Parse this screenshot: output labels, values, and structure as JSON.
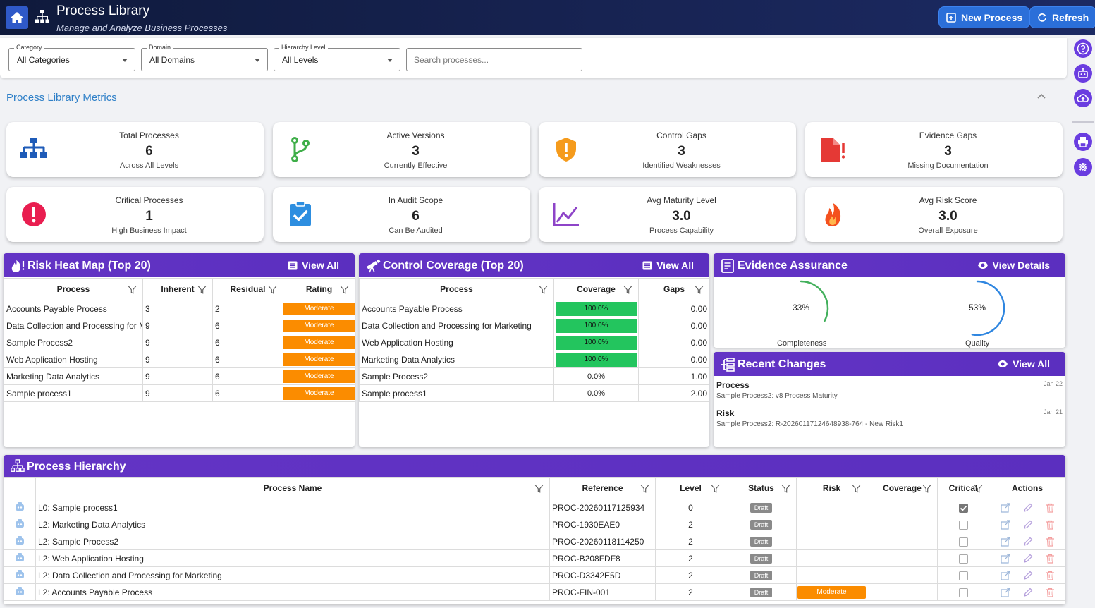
{
  "header": {
    "title": "Process Library",
    "subtitle": "Manage and Analyze Business Processes",
    "new_process_label": "New Process",
    "refresh_label": "Refresh"
  },
  "filters": {
    "category": {
      "label": "Category",
      "value": "All Categories"
    },
    "domain": {
      "label": "Domain",
      "value": "All Domains"
    },
    "level": {
      "label": "Hierarchy Level",
      "value": "All Levels"
    },
    "search_placeholder": "Search processes..."
  },
  "metrics": {
    "title": "Process Library Metrics",
    "cards": [
      {
        "label": "Total Processes",
        "value": "6",
        "sub": "Across All Levels",
        "icon": "hierarchy-icon",
        "color": "#1e5bb8"
      },
      {
        "label": "Active Versions",
        "value": "3",
        "sub": "Currently Effective",
        "icon": "branch-icon",
        "color": "#3fae49"
      },
      {
        "label": "Control Gaps",
        "value": "3",
        "sub": "Identified Weaknesses",
        "icon": "shield-alert-icon",
        "color": "#f59b1c"
      },
      {
        "label": "Evidence Gaps",
        "value": "3",
        "sub": "Missing Documentation",
        "icon": "file-alert-icon",
        "color": "#e53935"
      },
      {
        "label": "Critical Processes",
        "value": "1",
        "sub": "High Business Impact",
        "icon": "alert-circle-icon",
        "color": "#e91e50"
      },
      {
        "label": "In Audit Scope",
        "value": "6",
        "sub": "Can Be Audited",
        "icon": "clipboard-check-icon",
        "color": "#2d8ee0"
      },
      {
        "label": "Avg Maturity Level",
        "value": "3.0",
        "sub": "Process Capability",
        "icon": "chart-line-icon",
        "color": "#8e44c8"
      },
      {
        "label": "Avg Risk Score",
        "value": "3.0",
        "sub": "Overall Exposure",
        "icon": "fire-icon",
        "color": "#f4511e"
      }
    ]
  },
  "risk_heatmap": {
    "title": "Risk Heat Map (Top 20)",
    "view_all": "View All",
    "columns": [
      "Process",
      "Inherent",
      "Residual",
      "Rating"
    ],
    "rows": [
      [
        "Accounts Payable Process",
        "3",
        "2",
        "Moderate"
      ],
      [
        "Data Collection and Processing for Marketing",
        "9",
        "6",
        "Moderate"
      ],
      [
        "Sample Process2",
        "9",
        "6",
        "Moderate"
      ],
      [
        "Web Application Hosting",
        "9",
        "6",
        "Moderate"
      ],
      [
        "Marketing Data Analytics",
        "9",
        "6",
        "Moderate"
      ],
      [
        "Sample process1",
        "9",
        "6",
        "Moderate"
      ]
    ]
  },
  "control_coverage": {
    "title": "Control Coverage (Top 20)",
    "view_all": "View All",
    "columns": [
      "Process",
      "Coverage",
      "Gaps"
    ],
    "rows": [
      [
        "Accounts Payable Process",
        "100.0%",
        "0.00"
      ],
      [
        "Data Collection and Processing for Marketing",
        "100.0%",
        "0.00"
      ],
      [
        "Web Application Hosting",
        "100.0%",
        "0.00"
      ],
      [
        "Marketing Data Analytics",
        "100.0%",
        "0.00"
      ],
      [
        "Sample Process2",
        "0.0%",
        "1.00"
      ],
      [
        "Sample process1",
        "0.0%",
        "2.00"
      ]
    ]
  },
  "evidence": {
    "title": "Evidence Assurance",
    "view_details": "View Details",
    "completeness": {
      "label": "Completeness",
      "value": "33%",
      "fraction": 0.33,
      "color": "#43b05c"
    },
    "quality": {
      "label": "Quality",
      "value": "53%",
      "fraction": 0.53,
      "color": "#2f86e0"
    }
  },
  "recent_changes": {
    "title": "Recent Changes",
    "view_all": "View All",
    "items": [
      {
        "type": "Process",
        "desc": "Sample Process2: v8 Process Maturity",
        "date": "Jan 22"
      },
      {
        "type": "Risk",
        "desc": "Sample Process2: R-20260117124648938-764 - New Risk1",
        "date": "Jan 21"
      }
    ]
  },
  "hierarchy": {
    "title": "Process Hierarchy",
    "columns": [
      "Process Name",
      "Reference",
      "Level",
      "Status",
      "Risk",
      "Coverage",
      "Critical",
      "Actions"
    ],
    "rows": [
      {
        "name": "L0: Sample process1",
        "ref": "PROC-20260117125934",
        "level": "0",
        "status": "Draft",
        "risk": "",
        "coverage": "",
        "critical": true
      },
      {
        "name": "L2: Marketing Data Analytics",
        "ref": "PROC-1930EAE0",
        "level": "2",
        "status": "Draft",
        "risk": "",
        "coverage": "",
        "critical": false
      },
      {
        "name": "L2: Sample Process2",
        "ref": "PROC-20260118114250",
        "level": "2",
        "status": "Draft",
        "risk": "",
        "coverage": "",
        "critical": false
      },
      {
        "name": "L2: Web Application Hosting",
        "ref": "PROC-B208FDF8",
        "level": "2",
        "status": "Draft",
        "risk": "",
        "coverage": "",
        "critical": false
      },
      {
        "name": "L2: Data Collection and Processing for Marketing",
        "ref": "PROC-D3342E5D",
        "level": "2",
        "status": "Draft",
        "risk": "",
        "coverage": "",
        "critical": false
      },
      {
        "name": "L2: Accounts Payable Process",
        "ref": "PROC-FIN-001",
        "level": "2",
        "status": "Draft",
        "risk": "Moderate",
        "coverage": "",
        "critical": false
      }
    ]
  }
}
